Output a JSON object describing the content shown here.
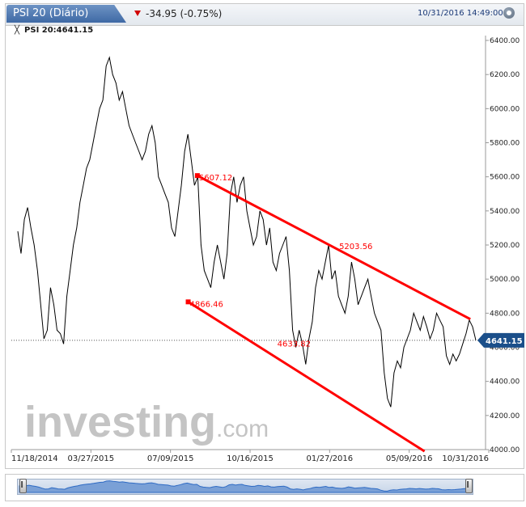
{
  "header": {
    "title": "PSI 20 (Diário)",
    "change": "-34.95 (-0.75%)",
    "timestamp": "10/31/2016 14:49:00",
    "change_direction_icon": "down-triangle-icon",
    "close_icon": "close-circle-icon"
  },
  "legend": {
    "cursor": "╳",
    "label": "PSI 20:4641.15"
  },
  "watermark": {
    "text": "investing",
    "suffix": ".com"
  },
  "colors": {
    "line": "#000000",
    "trend": "#ff0000",
    "tag": "#1b4f8a",
    "axis_text": "#222222"
  },
  "chart_data": {
    "type": "line",
    "title": "PSI 20 (Diário)",
    "ylim": [
      4000,
      6400
    ],
    "y_ticks": [
      "6400.00",
      "6200.00",
      "6000.00",
      "5800.00",
      "5600.00",
      "5400.00",
      "5200.00",
      "5000.00",
      "4800.00",
      "4600.00",
      "4400.00",
      "4200.00",
      "4000.00"
    ],
    "x_ticks": [
      "11/18/2014",
      "03/27/2015",
      "07/09/2015",
      "10/16/2015",
      "01/27/2016",
      "05/09/2016",
      "10/31/2016"
    ],
    "last_value": "4641.15",
    "reference_line": 4641.15,
    "series": [
      {
        "values": [
          5280,
          5150,
          5350,
          5420,
          5300,
          5200,
          5050,
          4850,
          4650,
          4700,
          4950,
          4850,
          4700,
          4680,
          4620,
          4900,
          5050,
          5200,
          5300,
          5450,
          5550,
          5650,
          5700,
          5800,
          5900,
          6000,
          6050,
          6250,
          6300,
          6200,
          6150,
          6050,
          6100,
          6000,
          5900,
          5850,
          5800,
          5750,
          5700,
          5750,
          5850,
          5900,
          5800,
          5600,
          5550,
          5500,
          5450,
          5300,
          5250,
          5400,
          5550,
          5750,
          5850,
          5700,
          5550,
          5600,
          5200,
          5050,
          5000,
          4950,
          5100,
          5200,
          5100,
          5000,
          5150,
          5500,
          5600,
          5450,
          5550,
          5600,
          5400,
          5300,
          5200,
          5250,
          5400,
          5350,
          5200,
          5300,
          5100,
          5050,
          5150,
          5200,
          5250,
          5050,
          4700,
          4600,
          4700,
          4620,
          4500,
          4650,
          4750,
          4950,
          5050,
          5000,
          5100,
          5200,
          5000,
          5050,
          4900,
          4850,
          4800,
          4900,
          5100,
          5000,
          4850,
          4900,
          4950,
          5000,
          4900,
          4800,
          4750,
          4700,
          4450,
          4300,
          4250,
          4450,
          4520,
          4480,
          4600,
          4650,
          4700,
          4800,
          4750,
          4700,
          4780,
          4720,
          4650,
          4700,
          4800,
          4760,
          4720,
          4550,
          4500,
          4560,
          4520,
          4560,
          4620,
          4680,
          4760,
          4720,
          4641.15
        ]
      }
    ],
    "annotations": [
      {
        "label": "5607.12",
        "x": 0.392,
        "y": 5607.12
      },
      {
        "label": "5203.56",
        "x": 0.698,
        "y": 5203.56
      },
      {
        "label": "4866.46",
        "x": 0.372,
        "y": 4866.46
      },
      {
        "label": "4633.82",
        "x": 0.563,
        "y": 4633.82
      }
    ],
    "trendlines": [
      {
        "x1": 0.392,
        "y1": 5607.12,
        "x2": 0.988,
        "y2": 4765
      },
      {
        "x1": 0.372,
        "y1": 4866.46,
        "x2": 0.888,
        "y2": 3990
      }
    ],
    "grid": false
  }
}
